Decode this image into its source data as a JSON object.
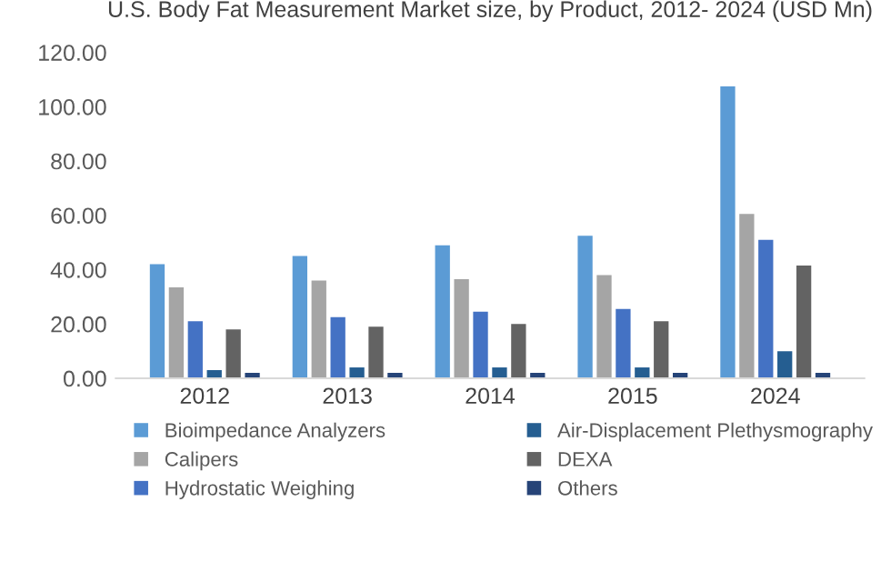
{
  "chart_data": {
    "type": "bar",
    "title": "U.S. Body Fat Measurement Market size, by Product, 2012- 2024 (USD Mn)",
    "categories": [
      "2012",
      "2013",
      "2014",
      "2015",
      "2024"
    ],
    "series": [
      {
        "name": "Bioimpedance Analyzers",
        "color": "#5b9bd5",
        "values": [
          42,
          45,
          49,
          52.5,
          107.5
        ]
      },
      {
        "name": "Calipers",
        "color": "#a5a5a5",
        "values": [
          33.5,
          36,
          36.5,
          38,
          60.5
        ]
      },
      {
        "name": "Hydrostatic Weighing",
        "color": "#4472c4",
        "values": [
          21,
          22.5,
          24.5,
          25.5,
          51
        ]
      },
      {
        "name": "Air-Displacement Plethysmography",
        "color": "#255e91",
        "values": [
          3,
          4,
          4,
          4,
          10
        ]
      },
      {
        "name": "DEXA",
        "color": "#636363",
        "values": [
          18,
          19,
          20,
          21,
          41.5
        ]
      },
      {
        "name": "Others",
        "color": "#264478",
        "values": [
          2,
          2,
          2,
          2,
          2
        ]
      }
    ],
    "ylim": [
      0,
      120
    ],
    "yticks": [
      {
        "value": 0,
        "label": "0.00"
      },
      {
        "value": 20,
        "label": "20.00"
      },
      {
        "value": 40,
        "label": "40.00"
      },
      {
        "value": 60,
        "label": "60.00"
      },
      {
        "value": 80,
        "label": "80.00"
      },
      {
        "value": 100,
        "label": "100.00"
      },
      {
        "value": 120,
        "label": "120.00"
      }
    ],
    "grid": false,
    "legend": "bottom"
  }
}
